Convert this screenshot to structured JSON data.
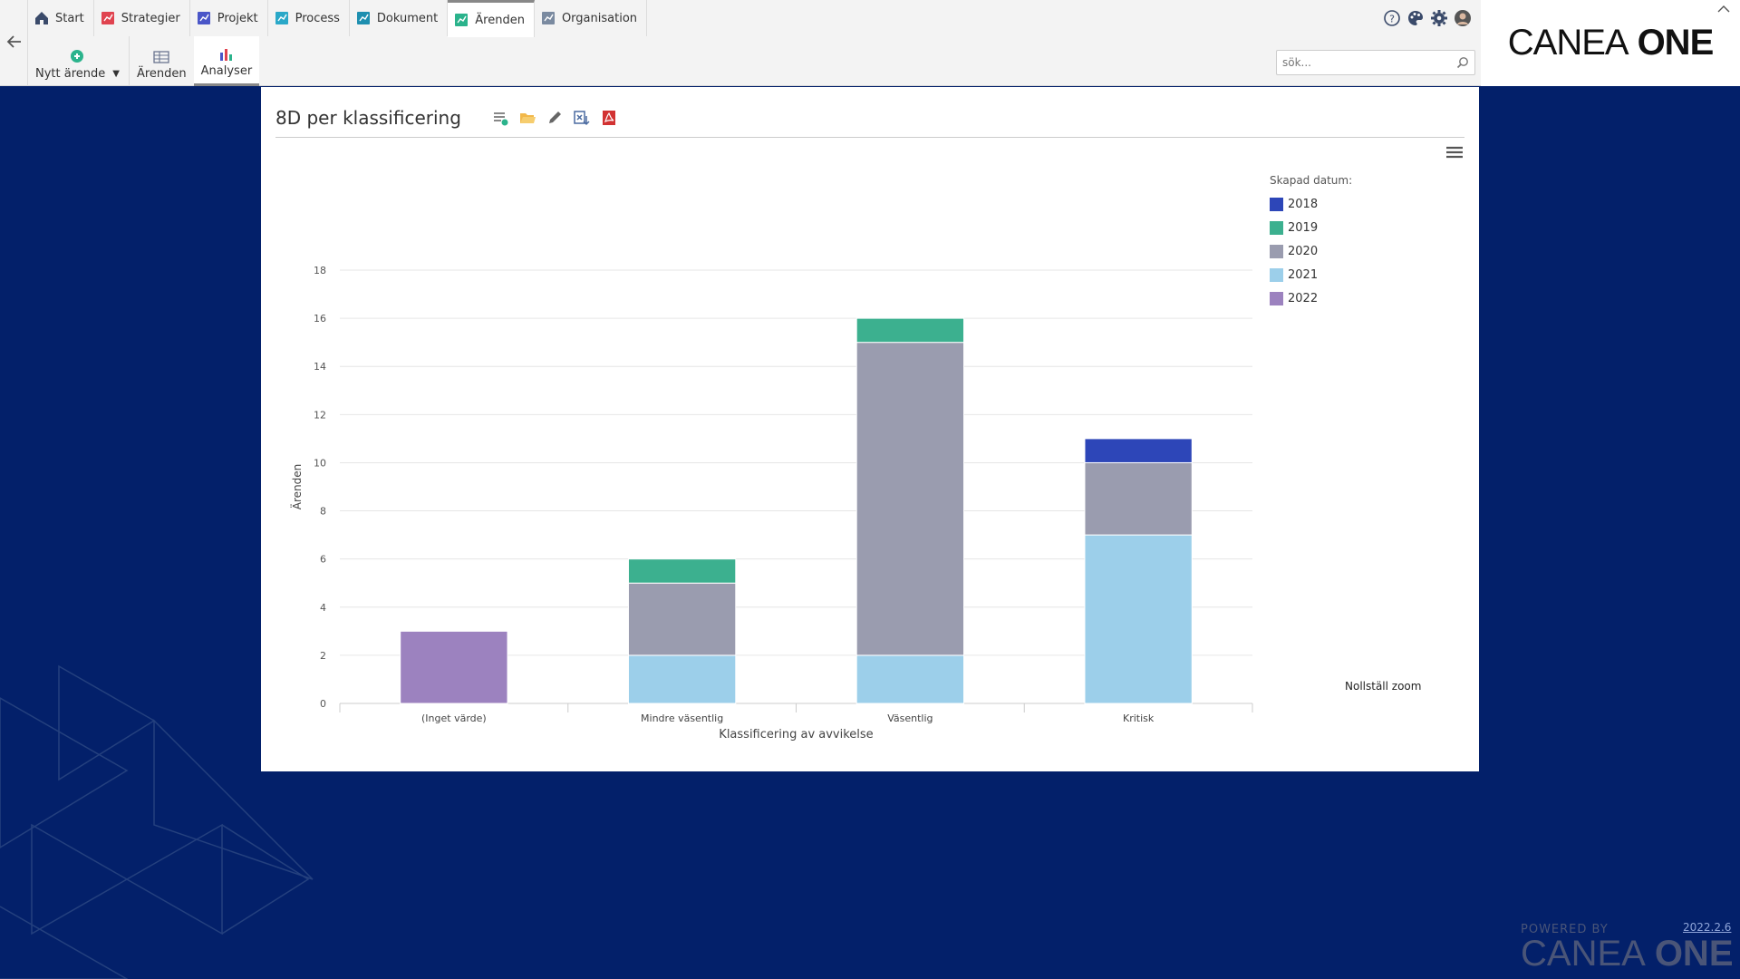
{
  "nav": {
    "tabs": [
      {
        "label": "Start",
        "icon": "home-icon",
        "color": "#3a4a6a"
      },
      {
        "label": "Strategier",
        "icon": "strategy-icon",
        "color": "#e0434f"
      },
      {
        "label": "Projekt",
        "icon": "project-icon",
        "color": "#4a56c8"
      },
      {
        "label": "Process",
        "icon": "process-icon",
        "color": "#2aa8c8"
      },
      {
        "label": "Dokument",
        "icon": "document-icon",
        "color": "#1e8fb0"
      },
      {
        "label": "Ärenden",
        "icon": "cases-icon",
        "color": "#2bb38c"
      },
      {
        "label": "Organisation",
        "icon": "organisation-icon",
        "color": "#7a8aa0"
      }
    ],
    "active_tab": "Ärenden"
  },
  "subbar": {
    "new_case": "Nytt ärende",
    "cases": "Ärenden",
    "analyses": "Analyser"
  },
  "search": {
    "placeholder": "sök..."
  },
  "logo": {
    "text": "CANEA",
    "bold": "ONE"
  },
  "panel": {
    "title": "8D per klassificering",
    "reset_zoom": "Nollställ zoom"
  },
  "chart_data": {
    "type": "bar",
    "stacked": true,
    "categories": [
      "(Inget värde)",
      "Mindre väsentlig",
      "Väsentlig",
      "Kritisk"
    ],
    "series": [
      {
        "name": "2018",
        "color": "#2d46b8",
        "values": [
          0,
          0,
          0,
          1
        ]
      },
      {
        "name": "2019",
        "color": "#3cb08f",
        "values": [
          0,
          1,
          1,
          0
        ]
      },
      {
        "name": "2020",
        "color": "#9a9caf",
        "values": [
          0,
          3,
          13,
          3
        ]
      },
      {
        "name": "2021",
        "color": "#9ccfea",
        "values": [
          0,
          2,
          2,
          7
        ]
      },
      {
        "name": "2022",
        "color": "#9c82bf",
        "values": [
          3,
          0,
          0,
          0
        ]
      }
    ],
    "xlabel": "Klassificering av avvikelse",
    "ylabel": "Ärenden",
    "ylim": [
      0,
      18
    ],
    "yticks": [
      0,
      2,
      4,
      6,
      8,
      10,
      12,
      14,
      16,
      18
    ],
    "legend_title": "Skapad datum:",
    "legend_position": "right",
    "grid": true
  },
  "footer": {
    "powered_by": "POWERED BY",
    "logo_text": "CANEA",
    "logo_bold": "ONE",
    "version": "2022.2.6"
  }
}
